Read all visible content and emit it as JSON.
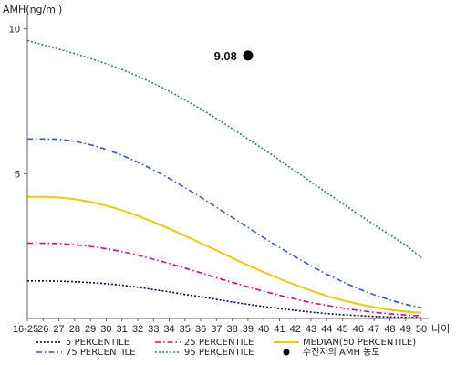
{
  "chart_data": {
    "type": "line",
    "xlabel": "나이",
    "ylabel": "AMH(ng/ml)",
    "ylim": [
      0,
      11
    ],
    "yticks": [
      10,
      5
    ],
    "x": [
      "16-25",
      "26",
      "27",
      "28",
      "29",
      "30",
      "31",
      "32",
      "33",
      "34",
      "35",
      "36",
      "37",
      "38",
      "39",
      "40",
      "41",
      "42",
      "43",
      "44",
      "45",
      "46",
      "47",
      "48",
      "49",
      "50"
    ],
    "series": [
      {
        "name": "5 PERCENTILE",
        "color": "#000066",
        "dash": "dotted",
        "values": [
          1.3,
          1.3,
          1.29,
          1.27,
          1.24,
          1.2,
          1.15,
          1.08,
          1.0,
          0.92,
          0.83,
          0.75,
          0.66,
          0.57,
          0.49,
          0.41,
          0.34,
          0.28,
          0.22,
          0.17,
          0.13,
          0.1,
          0.07,
          0.05,
          0.04,
          0.03
        ]
      },
      {
        "name": "25 PERCENTILE",
        "color": "#e6007e",
        "dash": "dashdot",
        "values": [
          2.6,
          2.6,
          2.59,
          2.55,
          2.49,
          2.41,
          2.31,
          2.19,
          2.05,
          1.9,
          1.74,
          1.58,
          1.41,
          1.25,
          1.09,
          0.94,
          0.8,
          0.67,
          0.55,
          0.45,
          0.36,
          0.28,
          0.21,
          0.16,
          0.12,
          0.09
        ]
      },
      {
        "name": "75 PERCENTILE",
        "color": "#3355cc",
        "dash": "dashdot",
        "values": [
          6.2,
          6.2,
          6.19,
          6.12,
          6.0,
          5.84,
          5.64,
          5.4,
          5.13,
          4.84,
          4.52,
          4.19,
          3.84,
          3.49,
          3.14,
          2.79,
          2.45,
          2.13,
          1.82,
          1.53,
          1.27,
          1.03,
          0.82,
          0.64,
          0.49,
          0.37
        ]
      },
      {
        "name": "95 PERCENTILE",
        "color": "#2f8a4a",
        "dash": "dotted",
        "values": [
          9.6,
          9.45,
          9.3,
          9.15,
          8.98,
          8.8,
          8.6,
          8.37,
          8.12,
          7.85,
          7.55,
          7.24,
          6.9,
          6.56,
          6.2,
          5.84,
          5.47,
          5.09,
          4.72,
          4.34,
          3.97,
          3.6,
          3.24,
          2.89,
          2.54,
          2.1
        ]
      },
      {
        "name": "MEDIAN(50 PERCENTILE)",
        "color": "#f2c800",
        "dash": "solid",
        "values": [
          4.2,
          4.2,
          4.18,
          4.12,
          4.03,
          3.9,
          3.74,
          3.55,
          3.33,
          3.1,
          2.86,
          2.6,
          2.35,
          2.09,
          1.84,
          1.6,
          1.37,
          1.16,
          0.96,
          0.78,
          0.63,
          0.5,
          0.39,
          0.3,
          0.24,
          0.2
        ]
      }
    ],
    "points": [
      {
        "name": "수진자의 AMH 농도",
        "x": "39",
        "y": 9.08,
        "label": "9.08",
        "color": "#000000"
      }
    ],
    "legend": {
      "placement": "bottom",
      "items": [
        {
          "label": "5 PERCENTILE",
          "color": "#000066",
          "dash": "dotted"
        },
        {
          "label": "25 PERCENTILE",
          "color": "#e6007e",
          "dash": "dashdot"
        },
        {
          "label": "MEDIAN(50 PERCENTILE)",
          "color": "#f2c800",
          "dash": "solid"
        },
        {
          "label": "75 PERCENTILE",
          "color": "#3355cc",
          "dash": "dashdot"
        },
        {
          "label": "95 PERCENTILE",
          "color": "#2f8a4a",
          "dash": "dotted"
        },
        {
          "label": "수진자의 AMH 농도",
          "color": "#000000",
          "dash": "marker"
        }
      ]
    }
  }
}
